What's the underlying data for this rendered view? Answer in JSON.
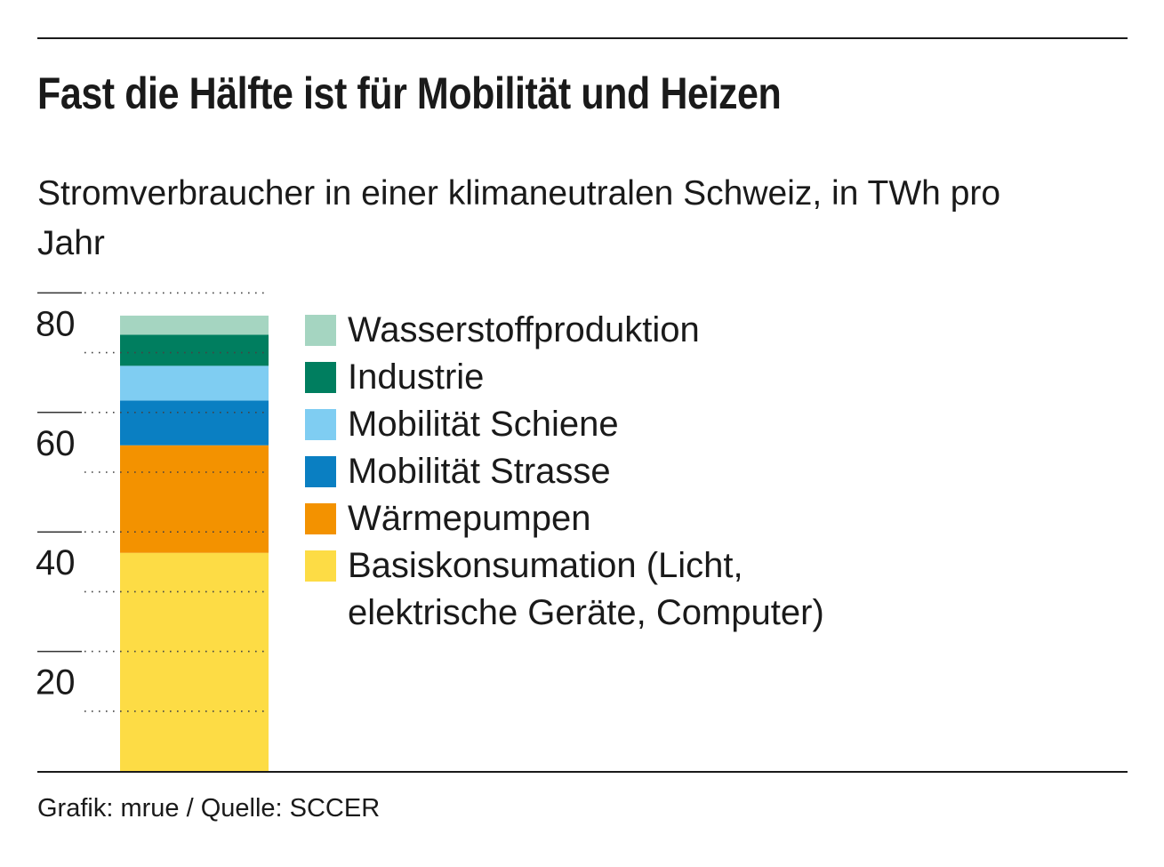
{
  "header": {
    "title": "Fast die Hälfte ist für Mobilität und Heizen",
    "subtitle": "Stromverbraucher in einer klimaneutralen Schweiz, in TWh pro Jahr"
  },
  "chart_data": {
    "type": "bar",
    "stacked": true,
    "title": "Fast die Hälfte ist für Mobilität und Heizen",
    "subtitle": "Stromverbraucher in einer klimaneutralen Schweiz, in TWh pro Jahr",
    "ylabel": "",
    "xlabel": "",
    "ylim": [
      0,
      80
    ],
    "yticks": [
      20,
      40,
      60,
      80
    ],
    "grid": true,
    "legend_position": "right",
    "categories": [
      ""
    ],
    "series": [
      {
        "name": "Basiskonsumation (Licht, elektrische Geräte, Computer)",
        "values": [
          36.5
        ],
        "color": "#fddc45"
      },
      {
        "name": "Wärmepumpen",
        "values": [
          18.0
        ],
        "color": "#f39200"
      },
      {
        "name": "Mobilität Strasse",
        "values": [
          7.5
        ],
        "color": "#0a7fc2"
      },
      {
        "name": "Mobilität Schiene",
        "values": [
          5.8
        ],
        "color": "#7fcdf2"
      },
      {
        "name": "Industrie",
        "values": [
          5.2
        ],
        "color": "#007e5f"
      },
      {
        "name": "Wasserstoffproduktion",
        "values": [
          3.2
        ],
        "color": "#a5d5c1"
      }
    ]
  },
  "legend": {
    "items": [
      {
        "label": "Wasserstoffproduktion",
        "color": "#a5d5c1"
      },
      {
        "label": "Industrie",
        "color": "#007e5f"
      },
      {
        "label": "Mobilität Schiene",
        "color": "#7fcdf2"
      },
      {
        "label": "Mobilität Strasse",
        "color": "#0a7fc2"
      },
      {
        "label": "Wärmepumpen",
        "color": "#f39200"
      },
      {
        "label": "Basiskonsumation (Licht, elektrische Geräte, Computer)",
        "color": "#fddc45"
      }
    ]
  },
  "footer": {
    "source": "Grafik: mrue / Quelle: SCCER"
  }
}
